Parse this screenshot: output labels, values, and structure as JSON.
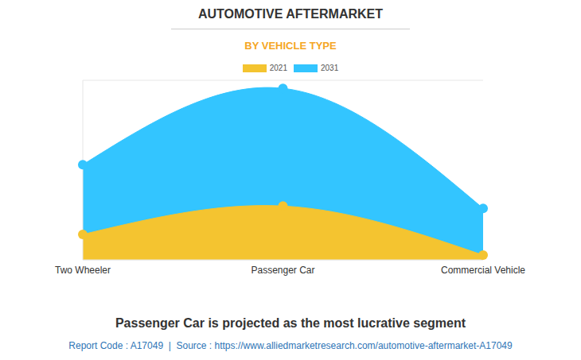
{
  "chart_data": {
    "type": "area",
    "title": "AUTOMOTIVE AFTERMARKET",
    "subtitle": "BY VEHICLE TYPE",
    "categories": [
      "Two Wheeler",
      "Passenger Car",
      "Commercial Vehicle"
    ],
    "series": [
      {
        "name": "2021",
        "color": "#f4c430",
        "marker": "circle",
        "values": [
          0.85,
          1.8,
          0.16
        ]
      },
      {
        "name": "2031",
        "color": "#33c5ff",
        "marker": "circle",
        "values": [
          3.18,
          5.73,
          1.72
        ]
      }
    ],
    "ylim": [
      0,
      6
    ],
    "yticks": [
      0,
      1,
      2,
      3,
      4,
      5,
      6
    ],
    "grid": true,
    "tick_labels": "x",
    "annotations": [
      "Passenger Car is projected as the most lucrative segment",
      "Report Code : A17049  |  Source : https://www.alliedmarketresearch.com/automotive-aftermarket-A17049"
    ]
  }
}
